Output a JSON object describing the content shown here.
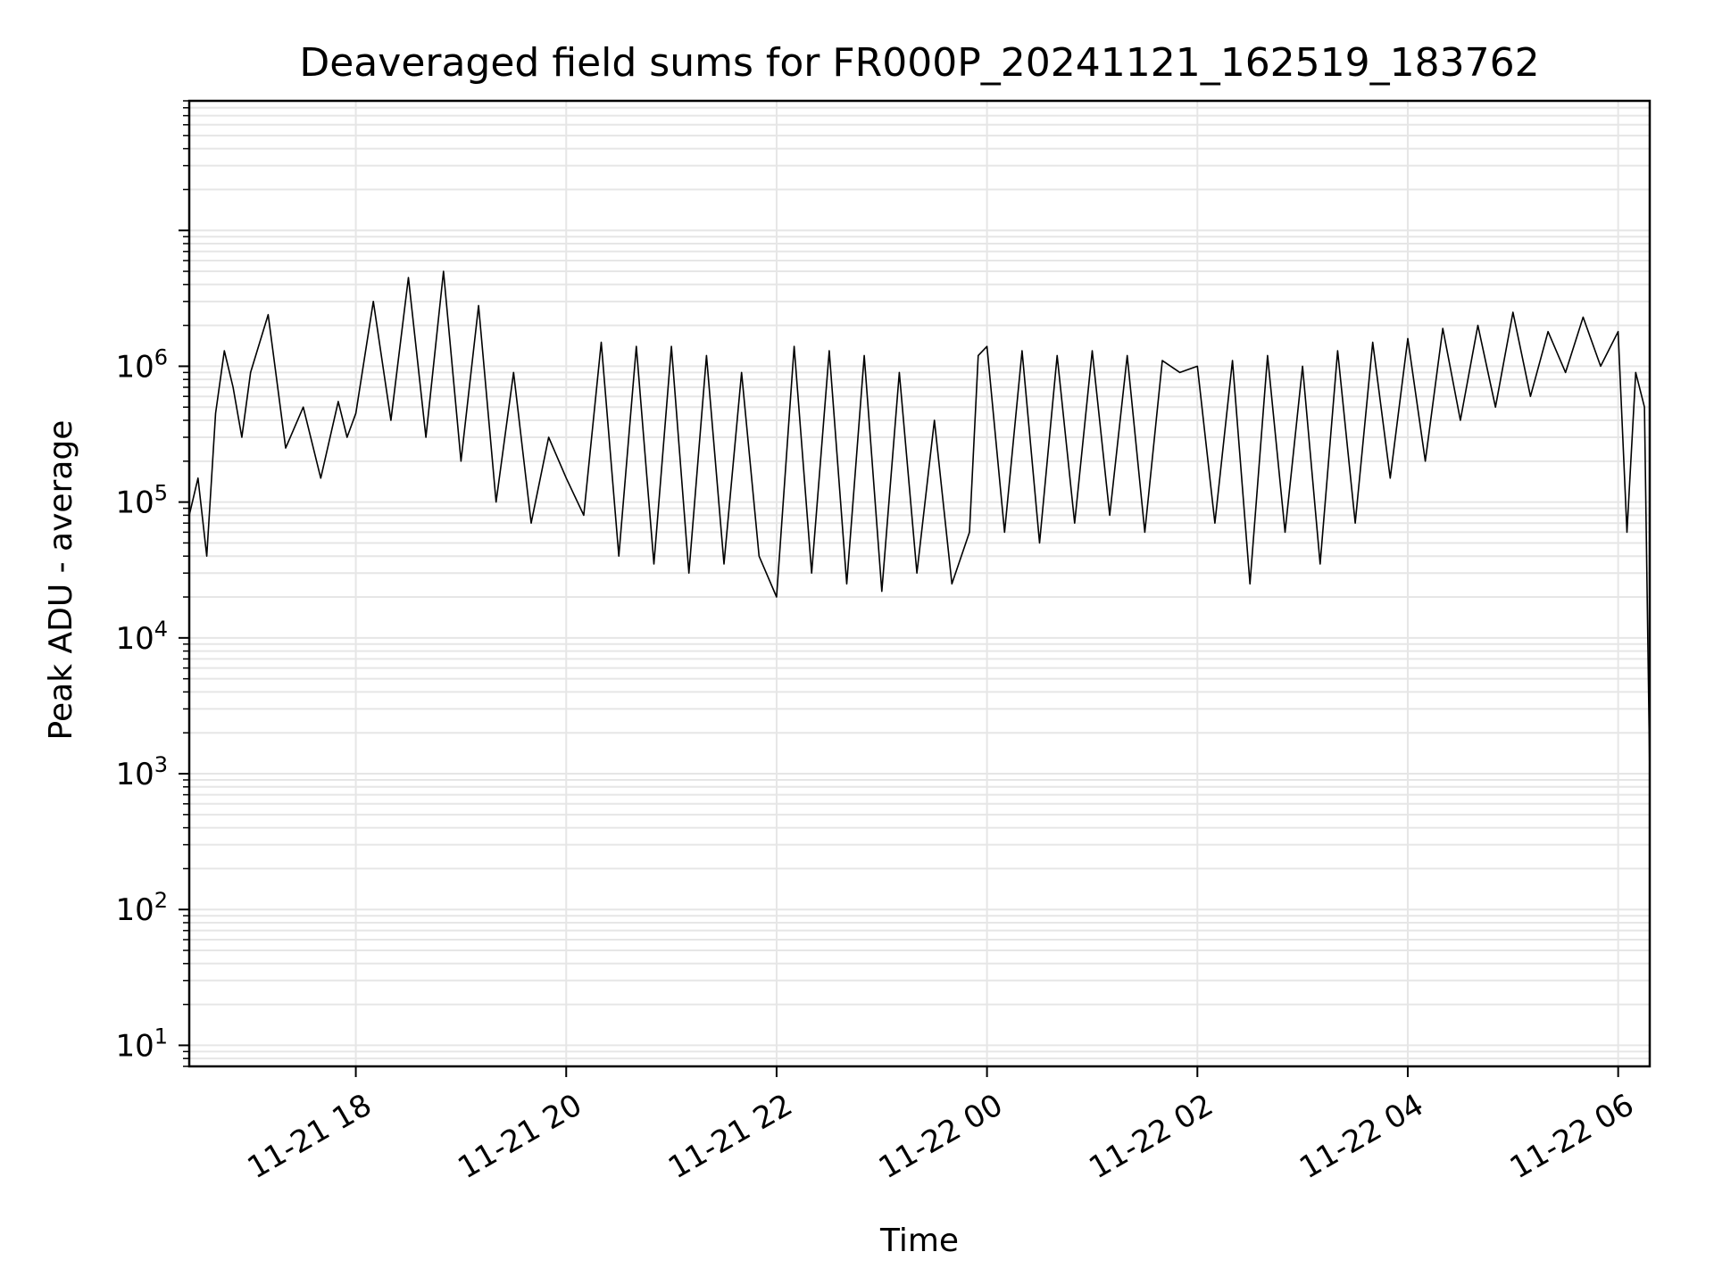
{
  "chart_data": {
    "type": "line",
    "title": "Deaveraged field sums for FR000P_20241121_162519_183762",
    "xlabel": "Time",
    "ylabel": "Peak ADU - average",
    "yscale": "log",
    "grid": true,
    "line_color": "#000000",
    "grid_color": "#e6e6e6",
    "x_range": [
      "2024-11-21 16:25",
      "2024-11-22 06:18"
    ],
    "ylim": [
      7,
      90000000
    ],
    "x_ticks": [
      {
        "t": "2024-11-21 18:00",
        "label": "11-21 18"
      },
      {
        "t": "2024-11-21 20:00",
        "label": "11-21 20"
      },
      {
        "t": "2024-11-21 22:00",
        "label": "11-21 22"
      },
      {
        "t": "2024-11-22 00:00",
        "label": "11-22 00"
      },
      {
        "t": "2024-11-22 02:00",
        "label": "11-22 02"
      },
      {
        "t": "2024-11-22 04:00",
        "label": "11-22 04"
      },
      {
        "t": "2024-11-22 06:00",
        "label": "11-22 06"
      }
    ],
    "y_ticks": [
      {
        "value": 10,
        "base": "10",
        "exp": "1"
      },
      {
        "value": 100,
        "base": "10",
        "exp": "2"
      },
      {
        "value": 1000,
        "base": "10",
        "exp": "3"
      },
      {
        "value": 10000,
        "base": "10",
        "exp": "4"
      },
      {
        "value": 100000,
        "base": "10",
        "exp": "5"
      },
      {
        "value": 1000000,
        "base": "10",
        "exp": "6"
      }
    ],
    "series": [
      {
        "x": [
          "2024-11-21 16:25",
          "2024-11-21 16:30",
          "2024-11-21 16:35",
          "2024-11-21 16:40",
          "2024-11-21 16:45",
          "2024-11-21 16:50",
          "2024-11-21 16:55",
          "2024-11-21 17:00",
          "2024-11-21 17:10",
          "2024-11-21 17:20",
          "2024-11-21 17:30",
          "2024-11-21 17:40",
          "2024-11-21 17:50",
          "2024-11-21 17:55",
          "2024-11-21 18:00",
          "2024-11-21 18:10",
          "2024-11-21 18:20",
          "2024-11-21 18:30",
          "2024-11-21 18:40",
          "2024-11-21 18:50",
          "2024-11-21 19:00",
          "2024-11-21 19:10",
          "2024-11-21 19:20",
          "2024-11-21 19:30",
          "2024-11-21 19:40",
          "2024-11-21 19:50",
          "2024-11-21 20:00",
          "2024-11-21 20:10",
          "2024-11-21 20:20",
          "2024-11-21 20:30",
          "2024-11-21 20:40",
          "2024-11-21 20:50",
          "2024-11-21 21:00",
          "2024-11-21 21:10",
          "2024-11-21 21:20",
          "2024-11-21 21:30",
          "2024-11-21 21:40",
          "2024-11-21 21:50",
          "2024-11-21 22:00",
          "2024-11-21 22:10",
          "2024-11-21 22:20",
          "2024-11-21 22:30",
          "2024-11-21 22:40",
          "2024-11-21 22:50",
          "2024-11-21 23:00",
          "2024-11-21 23:10",
          "2024-11-21 23:20",
          "2024-11-21 23:30",
          "2024-11-21 23:40",
          "2024-11-21 23:50",
          "2024-11-21 23:55",
          "2024-11-22 00:00",
          "2024-11-22 00:10",
          "2024-11-22 00:20",
          "2024-11-22 00:30",
          "2024-11-22 00:40",
          "2024-11-22 00:50",
          "2024-11-22 01:00",
          "2024-11-22 01:10",
          "2024-11-22 01:20",
          "2024-11-22 01:30",
          "2024-11-22 01:40",
          "2024-11-22 01:50",
          "2024-11-22 02:00",
          "2024-11-22 02:10",
          "2024-11-22 02:20",
          "2024-11-22 02:30",
          "2024-11-22 02:40",
          "2024-11-22 02:50",
          "2024-11-22 03:00",
          "2024-11-22 03:10",
          "2024-11-22 03:20",
          "2024-11-22 03:30",
          "2024-11-22 03:40",
          "2024-11-22 03:50",
          "2024-11-22 04:00",
          "2024-11-22 04:10",
          "2024-11-22 04:20",
          "2024-11-22 04:30",
          "2024-11-22 04:40",
          "2024-11-22 04:50",
          "2024-11-22 05:00",
          "2024-11-22 05:10",
          "2024-11-22 05:20",
          "2024-11-22 05:30",
          "2024-11-22 05:40",
          "2024-11-22 05:50",
          "2024-11-22 06:00",
          "2024-11-22 06:05",
          "2024-11-22 06:10",
          "2024-11-22 06:15",
          "2024-11-22 06:18"
        ],
        "y": [
          80000,
          150000,
          40000,
          450000,
          1300000,
          700000,
          300000,
          900000,
          2400000,
          250000,
          500000,
          150000,
          550000,
          300000,
          450000,
          3000000,
          400000,
          4500000,
          300000,
          5000000,
          200000,
          2800000,
          100000,
          900000,
          70000,
          300000,
          150000,
          80000,
          1500000,
          40000,
          1400000,
          35000,
          1400000,
          30000,
          1200000,
          35000,
          900000,
          40000,
          20000,
          1400000,
          30000,
          1300000,
          25000,
          1200000,
          22000,
          900000,
          30000,
          400000,
          25000,
          60000,
          1200000,
          1400000,
          60000,
          1300000,
          50000,
          1200000,
          70000,
          1300000,
          80000,
          1200000,
          60000,
          1100000,
          900000,
          1000000,
          70000,
          1100000,
          25000,
          1200000,
          60000,
          1000000,
          35000,
          1300000,
          70000,
          1500000,
          150000,
          1600000,
          200000,
          1900000,
          400000,
          2000000,
          500000,
          2500000,
          600000,
          1800000,
          900000,
          2300000,
          1000000,
          1800000,
          60000,
          900000,
          500000,
          1000
        ]
      }
    ]
  }
}
